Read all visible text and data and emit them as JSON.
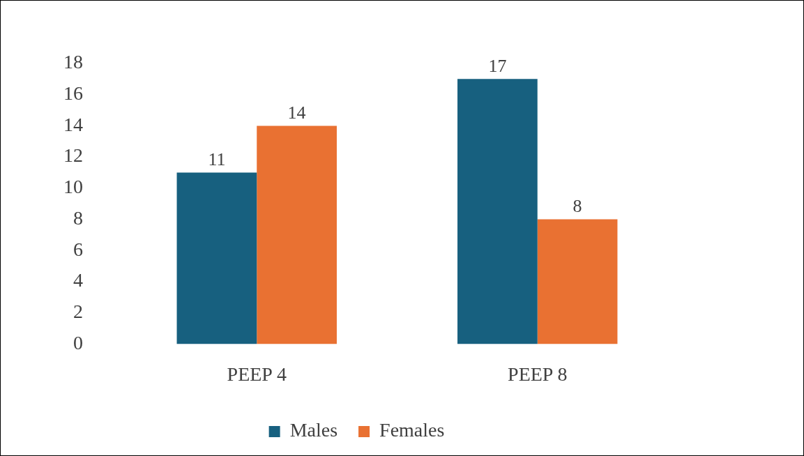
{
  "chart_data": {
    "type": "bar",
    "categories": [
      "PEEP 4",
      "PEEP 8"
    ],
    "series": [
      {
        "name": "Males",
        "color": "#17607f",
        "values": [
          11,
          17
        ]
      },
      {
        "name": "Females",
        "color": "#e97132",
        "values": [
          14,
          8
        ]
      }
    ],
    "ylim": [
      0,
      18
    ],
    "yticks": [
      0,
      2,
      4,
      6,
      8,
      10,
      12,
      14,
      16,
      18
    ],
    "grid": false,
    "legend": "bottom",
    "data_labels": true
  }
}
